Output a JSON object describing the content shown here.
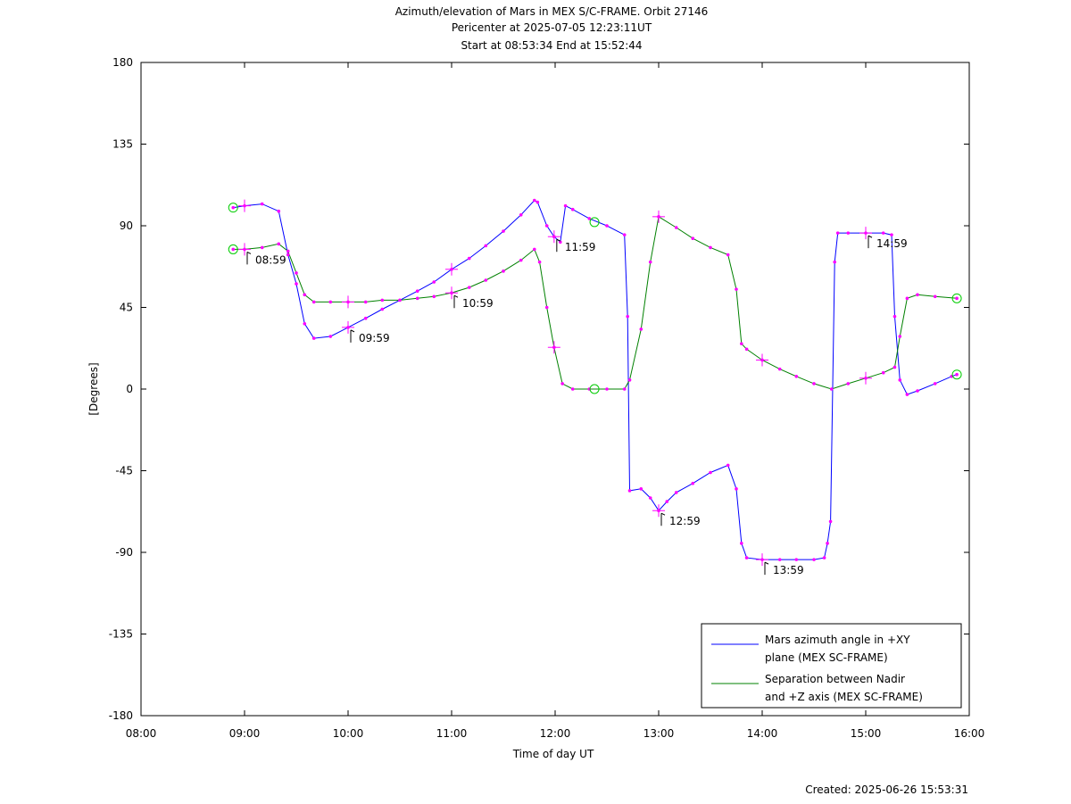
{
  "chart_data": {
    "type": "line",
    "title": [
      "Azimuth/elevation of Mars in MEX S/C-FRAME.  Orbit 27146",
      "Pericenter at 2025-07-05 12:23:11UT",
      "Start at 08:53:34 End at 15:52:44"
    ],
    "xlabel": "Time of day UT",
    "ylabel": "[Degrees]",
    "xlim": [
      8.0,
      16.0
    ],
    "ylim": [
      -180,
      180
    ],
    "x_ticks": [
      8,
      9,
      10,
      11,
      12,
      13,
      14,
      15,
      16
    ],
    "x_tick_labels": [
      "08:00",
      "09:00",
      "10:00",
      "11:00",
      "12:00",
      "13:00",
      "14:00",
      "15:00",
      "16:00"
    ],
    "y_ticks": [
      180,
      135,
      90,
      45,
      0,
      -45,
      -90,
      -135,
      -180
    ],
    "y_tick_labels": [
      "180",
      "135",
      "90",
      "45",
      "0",
      "-45",
      "-90",
      "-135",
      "-180"
    ],
    "grid": false,
    "legend_position": "bottom-right",
    "series": [
      {
        "name": "Mars azimuth angle in +XY plane (MEX SC-FRAME)",
        "legend_lines": [
          "Mars azimuth angle in +XY",
          "plane (MEX SC-FRAME)"
        ],
        "color": "#0000ff",
        "points": [
          [
            8.89,
            100
          ],
          [
            9.0,
            101
          ],
          [
            9.17,
            102
          ],
          [
            9.33,
            98
          ],
          [
            9.42,
            74
          ],
          [
            9.5,
            58
          ],
          [
            9.58,
            36
          ],
          [
            9.67,
            28
          ],
          [
            9.83,
            29
          ],
          [
            10.0,
            34
          ],
          [
            10.17,
            39
          ],
          [
            10.33,
            44
          ],
          [
            10.5,
            49
          ],
          [
            10.67,
            54
          ],
          [
            10.83,
            59
          ],
          [
            11.0,
            66
          ],
          [
            11.17,
            72
          ],
          [
            11.33,
            79
          ],
          [
            11.5,
            87
          ],
          [
            11.67,
            96
          ],
          [
            11.8,
            104
          ],
          [
            11.83,
            103
          ],
          [
            11.92,
            90
          ],
          [
            11.99,
            84
          ],
          [
            12.05,
            81
          ],
          [
            12.1,
            101
          ],
          [
            12.17,
            99
          ],
          [
            12.33,
            94
          ],
          [
            12.5,
            90
          ],
          [
            12.67,
            85
          ],
          [
            12.7,
            40
          ],
          [
            12.72,
            -56
          ],
          [
            12.83,
            -55
          ],
          [
            12.92,
            -60
          ],
          [
            13.0,
            -67
          ],
          [
            13.08,
            -62
          ],
          [
            13.17,
            -57
          ],
          [
            13.33,
            -52
          ],
          [
            13.5,
            -46
          ],
          [
            13.67,
            -42
          ],
          [
            13.75,
            -55
          ],
          [
            13.8,
            -85
          ],
          [
            13.85,
            -93
          ],
          [
            14.0,
            -94
          ],
          [
            14.17,
            -94
          ],
          [
            14.33,
            -94
          ],
          [
            14.5,
            -94
          ],
          [
            14.6,
            -93
          ],
          [
            14.63,
            -85
          ],
          [
            14.66,
            -73
          ],
          [
            14.7,
            70
          ],
          [
            14.73,
            86
          ],
          [
            14.83,
            86
          ],
          [
            15.0,
            86
          ],
          [
            15.17,
            86
          ],
          [
            15.25,
            85
          ],
          [
            15.28,
            40
          ],
          [
            15.33,
            5
          ],
          [
            15.4,
            -3
          ],
          [
            15.5,
            -1
          ],
          [
            15.67,
            3
          ],
          [
            15.83,
            7
          ],
          [
            15.88,
            8
          ]
        ]
      },
      {
        "name": "Separation between Nadir and +Z axis (MEX SC-FRAME)",
        "legend_lines": [
          "Separation between Nadir",
          "and +Z axis (MEX SC-FRAME)"
        ],
        "color": "#008000",
        "points": [
          [
            8.89,
            77
          ],
          [
            9.0,
            77
          ],
          [
            9.17,
            78
          ],
          [
            9.33,
            80
          ],
          [
            9.42,
            76
          ],
          [
            9.5,
            64
          ],
          [
            9.58,
            52
          ],
          [
            9.67,
            48
          ],
          [
            9.83,
            48
          ],
          [
            10.0,
            48
          ],
          [
            10.17,
            48
          ],
          [
            10.33,
            49
          ],
          [
            10.5,
            49
          ],
          [
            10.67,
            50
          ],
          [
            10.83,
            51
          ],
          [
            11.0,
            53
          ],
          [
            11.17,
            56
          ],
          [
            11.33,
            60
          ],
          [
            11.5,
            65
          ],
          [
            11.67,
            71
          ],
          [
            11.8,
            77
          ],
          [
            11.85,
            70
          ],
          [
            11.92,
            45
          ],
          [
            11.99,
            23
          ],
          [
            12.07,
            3
          ],
          [
            12.17,
            0
          ],
          [
            12.33,
            0
          ],
          [
            12.5,
            0
          ],
          [
            12.67,
            0
          ],
          [
            12.72,
            5
          ],
          [
            12.83,
            33
          ],
          [
            12.92,
            70
          ],
          [
            13.0,
            95
          ],
          [
            13.17,
            89
          ],
          [
            13.33,
            83
          ],
          [
            13.5,
            78
          ],
          [
            13.67,
            74
          ],
          [
            13.75,
            55
          ],
          [
            13.8,
            25
          ],
          [
            13.85,
            22
          ],
          [
            14.0,
            16
          ],
          [
            14.17,
            11
          ],
          [
            14.33,
            7
          ],
          [
            14.5,
            3
          ],
          [
            14.67,
            0
          ],
          [
            14.83,
            3
          ],
          [
            15.0,
            6
          ],
          [
            15.17,
            9
          ],
          [
            15.28,
            12
          ],
          [
            15.33,
            29
          ],
          [
            15.4,
            50
          ],
          [
            15.5,
            52
          ],
          [
            15.67,
            51
          ],
          [
            15.88,
            50
          ]
        ]
      }
    ],
    "time_markers": [
      {
        "label": "08:59",
        "x": 9.0,
        "y": 77
      },
      {
        "label": "09:59",
        "x": 10.0,
        "y": 34
      },
      {
        "label": "10:59",
        "x": 11.0,
        "y": 53
      },
      {
        "label": "11:59",
        "x": 11.99,
        "y": 84
      },
      {
        "label": "12:59",
        "x": 13.0,
        "y": -67
      },
      {
        "label": "13:59",
        "x": 14.0,
        "y": -94
      },
      {
        "label": "14:59",
        "x": 15.0,
        "y": 86
      }
    ],
    "plus_markers": [
      [
        9.0,
        101
      ],
      [
        9.0,
        77
      ],
      [
        10.0,
        34
      ],
      [
        10.0,
        48
      ],
      [
        11.0,
        66
      ],
      [
        11.0,
        53
      ],
      [
        11.99,
        84
      ],
      [
        11.99,
        23
      ],
      [
        13.0,
        -67
      ],
      [
        13.0,
        95
      ],
      [
        14.0,
        -94
      ],
      [
        14.0,
        16
      ],
      [
        15.0,
        86
      ],
      [
        15.0,
        6
      ]
    ],
    "circle_markers": [
      [
        8.89,
        100
      ],
      [
        8.89,
        77
      ],
      [
        12.38,
        92
      ],
      [
        12.38,
        0
      ],
      [
        15.88,
        50
      ],
      [
        15.88,
        8
      ]
    ],
    "footer": "Created: 2025-06-26 15:53:31"
  }
}
